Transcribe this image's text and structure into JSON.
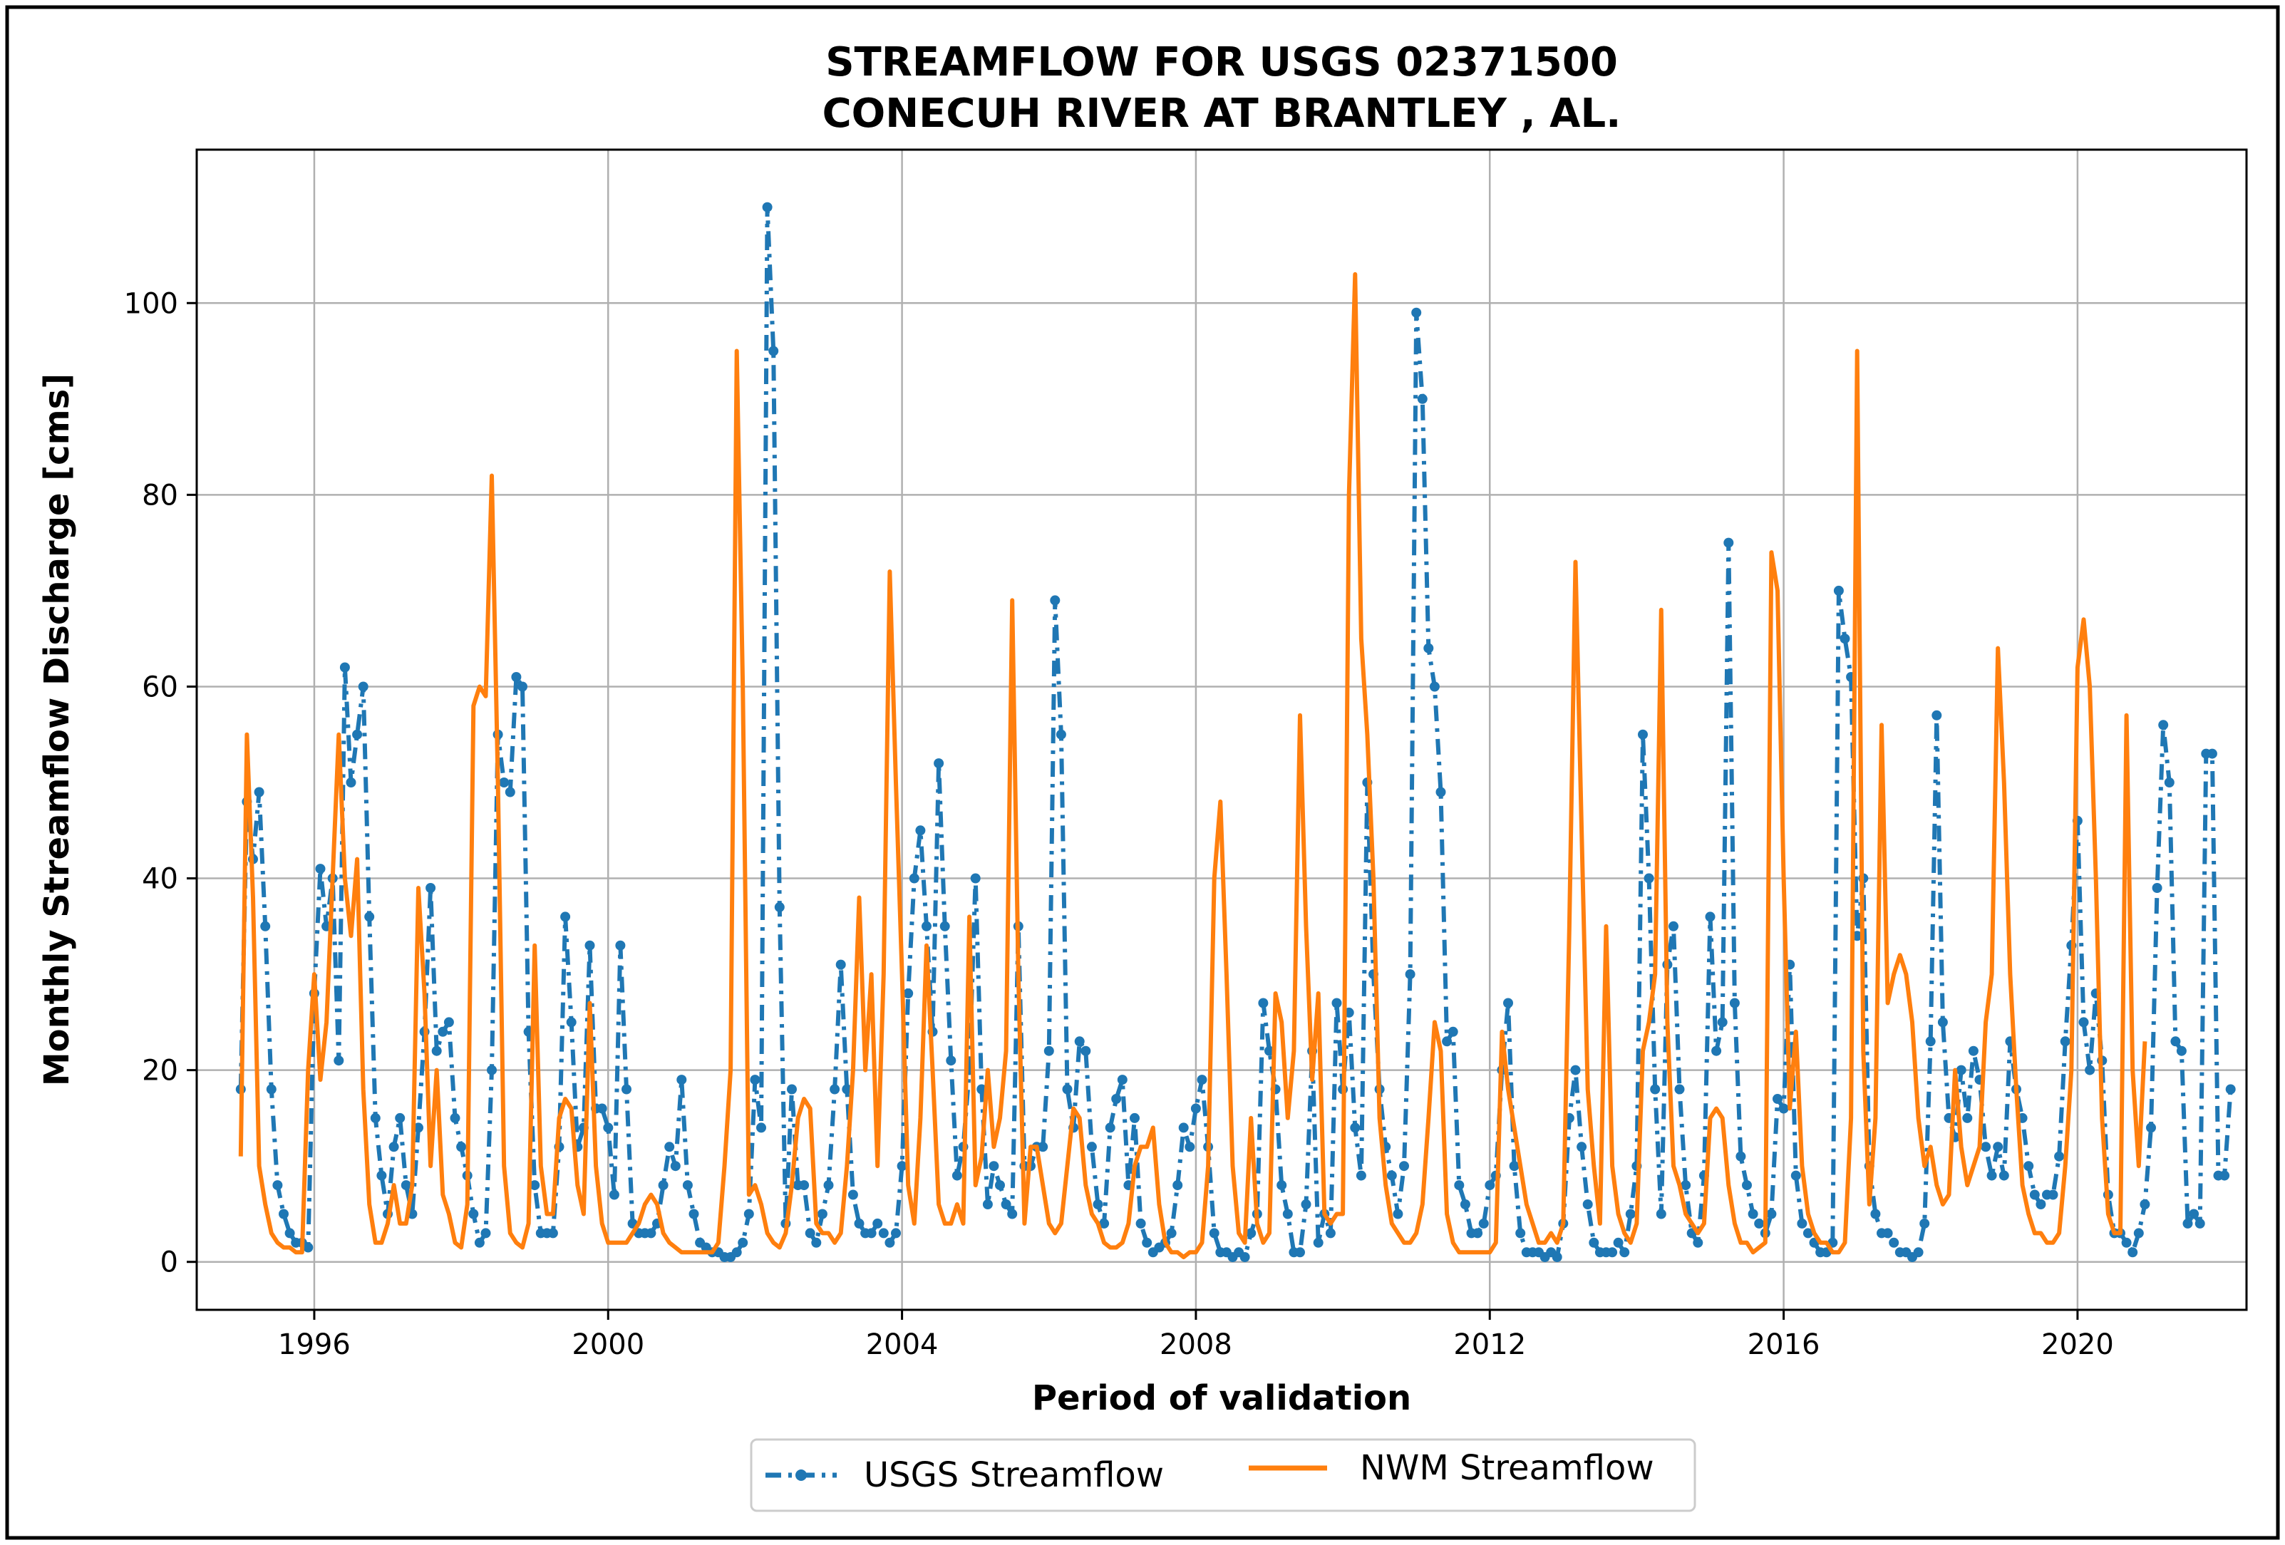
{
  "colors": {
    "usgs": "#1f77b4",
    "nwm": "#ff7f0e",
    "grid": "#b0b0b0",
    "frame": "#000000"
  },
  "chart_data": {
    "type": "line",
    "title": [
      "STREAMFLOW FOR USGS 02371500",
      "CONECUH RIVER AT BRANTLEY , AL."
    ],
    "xlabel": "Period of validation",
    "ylabel": "Monthly Streamflow Discharge [cms]",
    "xlim": [
      1994.4,
      2022.3
    ],
    "ylim": [
      -5,
      116
    ],
    "x_ticks": [
      1996,
      2000,
      2004,
      2008,
      2012,
      2016,
      2020
    ],
    "y_ticks": [
      0,
      20,
      40,
      60,
      80,
      100
    ],
    "grid": true,
    "legend_position": "bottom-center",
    "x_start": 1995.0,
    "x_step_months": 1,
    "series": [
      {
        "name": "USGS Streamflow",
        "style": "dash-dot with circle markers",
        "values": [
          18,
          48,
          42,
          49,
          35,
          18,
          8,
          5,
          3,
          2,
          2,
          1.5,
          28,
          41,
          35,
          40,
          21,
          62,
          50,
          55,
          60,
          36,
          15,
          9,
          5,
          12,
          15,
          8,
          5,
          14,
          24,
          39,
          22,
          24,
          25,
          15,
          12,
          9,
          5,
          2,
          3,
          20,
          55,
          50,
          49,
          61,
          60,
          24,
          8,
          3,
          3,
          3,
          12,
          36,
          25,
          12,
          14,
          33,
          16,
          16,
          14,
          7,
          33,
          18,
          4,
          3,
          3,
          3,
          4,
          8,
          12,
          10,
          19,
          8,
          5,
          2,
          1.5,
          1,
          1,
          0.5,
          0.5,
          1,
          2,
          5,
          19,
          14,
          110,
          95,
          37,
          4,
          18,
          8,
          8,
          3,
          2,
          5,
          8,
          18,
          31,
          18,
          7,
          4,
          3,
          3,
          4,
          3,
          2,
          3,
          10,
          28,
          40,
          45,
          35,
          24,
          52,
          35,
          21,
          9,
          12,
          20,
          40,
          18,
          6,
          10,
          8,
          6,
          5,
          35,
          10,
          10,
          12,
          12,
          22,
          69,
          55,
          18,
          14,
          23,
          22,
          12,
          6,
          4,
          14,
          17,
          19,
          8,
          15,
          4,
          2,
          1,
          1.5,
          2,
          3,
          8,
          14,
          12,
          16,
          19,
          12,
          3,
          1,
          1,
          0.5,
          1,
          0.5,
          3,
          5,
          27,
          22,
          18,
          8,
          5,
          1,
          1,
          6,
          22,
          2,
          5,
          3,
          27,
          18,
          26,
          14,
          9,
          50,
          30,
          18,
          12,
          9,
          5,
          10,
          30,
          99,
          90,
          64,
          60,
          49,
          23,
          24,
          8,
          6,
          3,
          3,
          4,
          8,
          9,
          20,
          27,
          10,
          3,
          1,
          1,
          1,
          0.5,
          1,
          0.5,
          4,
          15,
          20,
          12,
          6,
          2,
          1,
          1,
          1,
          2,
          1,
          5,
          10,
          55,
          40,
          18,
          5,
          31,
          35,
          18,
          8,
          3,
          2,
          9,
          36,
          22,
          25,
          75,
          27,
          11,
          8,
          5,
          4,
          3,
          5,
          17,
          16,
          31,
          9,
          4,
          3,
          2,
          1,
          1,
          2,
          70,
          65,
          61,
          34,
          40,
          10,
          5,
          3,
          3,
          2,
          1,
          1,
          0.5,
          1,
          4,
          23,
          57,
          25,
          15,
          13,
          20,
          15,
          22,
          19,
          12,
          9,
          12,
          9,
          23,
          18,
          15,
          10,
          7,
          6,
          7,
          7,
          11,
          23,
          33,
          46,
          25,
          20,
          28,
          21,
          7,
          3,
          3,
          2,
          1,
          3,
          6,
          14,
          39,
          56,
          50,
          23,
          22,
          4,
          5,
          4,
          53,
          53,
          9,
          9,
          18
        ]
      },
      {
        "name": "NWM Streamflow",
        "style": "solid line",
        "values": [
          11,
          55,
          38,
          10,
          6,
          3,
          2,
          1.5,
          1.5,
          1,
          1,
          20,
          30,
          19,
          25,
          40,
          55,
          40,
          34,
          42,
          18,
          6,
          2,
          2,
          4,
          8,
          4,
          4,
          8,
          39,
          28,
          10,
          20,
          7,
          5,
          2,
          1.5,
          6,
          58,
          60,
          59,
          82,
          50,
          10,
          3,
          2,
          1.5,
          4,
          33,
          10,
          5,
          5,
          15,
          17,
          16,
          8,
          5,
          27,
          10,
          4,
          2,
          2,
          2,
          2,
          3,
          4,
          6,
          7,
          6,
          3,
          2,
          1.5,
          1,
          1,
          1,
          1,
          1,
          1,
          2,
          10,
          20,
          95,
          60,
          7,
          8,
          6,
          3,
          2,
          1.5,
          3,
          8,
          15,
          17,
          16,
          4,
          3,
          3,
          2,
          3,
          10,
          20,
          38,
          20,
          30,
          10,
          30,
          72,
          50,
          30,
          8,
          4,
          15,
          33,
          20,
          6,
          4,
          4,
          6,
          4,
          36,
          8,
          11,
          20,
          12,
          15,
          22,
          69,
          30,
          4,
          12,
          12,
          8,
          4,
          3,
          4,
          10,
          16,
          15,
          8,
          5,
          4,
          2,
          1.5,
          1.5,
          2,
          4,
          10,
          12,
          12,
          14,
          6,
          2,
          1,
          1,
          0.5,
          1,
          1,
          2,
          10,
          40,
          48,
          30,
          10,
          3,
          2,
          15,
          4,
          2,
          3,
          28,
          25,
          15,
          22,
          57,
          35,
          19,
          28,
          5,
          4,
          5,
          5,
          80,
          103,
          65,
          55,
          40,
          15,
          8,
          4,
          3,
          2,
          2,
          3,
          6,
          15,
          25,
          22,
          5,
          2,
          1,
          1,
          1,
          1,
          1,
          1,
          2,
          24,
          18,
          14,
          10,
          6,
          4,
          2,
          2,
          3,
          2,
          4,
          35,
          73,
          45,
          18,
          10,
          4,
          35,
          10,
          5,
          3,
          2,
          4,
          22,
          25,
          30,
          68,
          25,
          10,
          8,
          5,
          4,
          3,
          4,
          15,
          16,
          15,
          8,
          4,
          2,
          2,
          1,
          1.5,
          2,
          74,
          70,
          40,
          16,
          24,
          10,
          5,
          3,
          2,
          2,
          1,
          1,
          2,
          15,
          95,
          22,
          6,
          15,
          56,
          27,
          30,
          32,
          30,
          25,
          15,
          10,
          12,
          8,
          6,
          7,
          20,
          12,
          8,
          10,
          12,
          25,
          30,
          64,
          50,
          30,
          18,
          8,
          5,
          3,
          3,
          2,
          2,
          3,
          10,
          20,
          62,
          67,
          60,
          40,
          15,
          5,
          3,
          3,
          57,
          20,
          10,
          23
        ]
      }
    ]
  }
}
